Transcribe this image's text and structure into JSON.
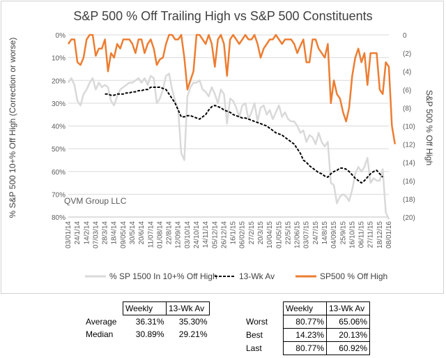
{
  "chart_data": {
    "type": "line",
    "title": "S&P 500 % Off Trailing High vs S&P 500 Constituents",
    "ylabel_left": "% S&P 500 10+% Off High (Correction or worse)",
    "ylabel_right": "S&P 500 % Off High",
    "watermark": "QVM Group LLC",
    "left_axis": {
      "min": 0,
      "max": 80,
      "ticks": [
        "0%",
        "10%",
        "20%",
        "30%",
        "40%",
        "50%",
        "60%",
        "70%",
        "80%"
      ],
      "tick_values": [
        0,
        10,
        20,
        30,
        40,
        50,
        60,
        70,
        80
      ]
    },
    "right_axis": {
      "min": 0,
      "max": 20,
      "ticks": [
        "0",
        "(2)",
        "(4)",
        "(6)",
        "(8)",
        "(10)",
        "(12)",
        "(14)",
        "(16)",
        "(18)",
        "(20)"
      ],
      "tick_values": [
        0,
        2,
        4,
        6,
        8,
        10,
        12,
        14,
        16,
        18,
        20
      ]
    },
    "x_ticks": [
      "03/01/14",
      "24/1/14",
      "14/2/14",
      "07/03/14",
      "28/3/14",
      "18/4/14",
      "09/05/14",
      "30/5/14",
      "20/6/14",
      "11/07/14",
      "01/08/14",
      "22/8/14",
      "12/09/14",
      "03/10/14",
      "24/10/14",
      "14/11/14",
      "05/12/14",
      "26/12/14",
      "16/1/15",
      "06/02/15",
      "27/2/15",
      "20/3/15",
      "10/04/15",
      "01/05/15",
      "22/5/15",
      "12/06/15",
      "03/07/15",
      "24/7/15",
      "14/8/15",
      "04/09/15",
      "25/9/15",
      "16/10/15",
      "06/11/15",
      "27/11/15",
      "18/12/15",
      "08/01/16"
    ],
    "n_points": 106,
    "legend_position": "bottom",
    "grid": true,
    "series": [
      {
        "name": "% SP 1500 In 10+% Off High",
        "axis": "left",
        "color": "#d9d9d9",
        "values": [
          21,
          19,
          22,
          29,
          31,
          26,
          24,
          21,
          19,
          24,
          21,
          23,
          22,
          23,
          29,
          31,
          27,
          24,
          23,
          22,
          21,
          21,
          20,
          19,
          21,
          19,
          22,
          18,
          19,
          30,
          28,
          24,
          18,
          17,
          24,
          29,
          33,
          52,
          55,
          27,
          23,
          21,
          21,
          20,
          24,
          25,
          27,
          23,
          26,
          30,
          24,
          26,
          39,
          28,
          29,
          32,
          36,
          31,
          30,
          37,
          34,
          30,
          38,
          32,
          31,
          35,
          33,
          37,
          34,
          31,
          36,
          34,
          37,
          38,
          38,
          40,
          43,
          42,
          47,
          44,
          45,
          48,
          43,
          47,
          49,
          47,
          65,
          66,
          74,
          71,
          70,
          71,
          73,
          68,
          61,
          58,
          60,
          58,
          54,
          65,
          63,
          64,
          64,
          59,
          78,
          81
        ]
      },
      {
        "name": "13-Wk Av",
        "axis": "left",
        "color": "#000000",
        "dashed": true,
        "start_index": 12,
        "values": [
          26,
          26,
          26.5,
          26.5,
          26,
          26,
          26,
          25.5,
          25.5,
          25,
          25,
          24.5,
          24.5,
          24,
          24,
          23,
          23,
          23,
          23,
          23.5,
          24,
          26,
          28,
          30,
          33,
          36,
          36,
          35.5,
          35.5,
          36,
          36.5,
          37,
          36,
          35,
          33,
          31.5,
          31,
          31.5,
          32,
          33,
          33.5,
          34,
          35,
          35.5,
          36,
          36.5,
          36.5,
          37,
          37.5,
          38,
          38.5,
          39,
          39.5,
          40,
          41,
          42,
          43,
          43.5,
          44,
          45,
          46,
          47,
          48,
          50,
          52,
          55,
          56,
          57.5,
          58.5,
          59.5,
          60.5,
          61,
          62,
          62.5,
          61,
          60,
          59.5,
          58.5,
          58.5,
          59,
          60,
          61.5,
          63,
          64,
          65,
          64,
          62.5,
          61,
          60,
          59.5,
          61,
          62.5
        ]
      },
      {
        "name": "SP500 % Off High",
        "axis": "right",
        "color": "#ed7d31",
        "values": [
          1,
          0.5,
          0.5,
          3,
          3.3,
          2.5,
          0.5,
          0,
          0,
          2.3,
          1.5,
          1.5,
          0.5,
          4,
          2,
          2.5,
          1,
          1.5,
          0.5,
          0.5,
          0.5,
          1,
          2,
          0.5,
          0.5,
          2,
          1,
          0.5,
          1.5,
          3.3,
          2.7,
          2.5,
          1,
          0,
          0,
          0.5,
          0.5,
          0,
          2.5,
          6,
          5,
          4,
          0,
          0,
          0.5,
          1,
          0,
          1,
          3.5,
          0.5,
          0,
          1,
          4.5,
          0.5,
          0,
          0.5,
          1,
          0.5,
          0,
          0.5,
          0.5,
          0,
          1,
          2.5,
          1.5,
          1,
          0.5,
          0.5,
          0,
          0.5,
          1,
          0.5,
          0.5,
          0.5,
          1,
          2,
          1.2,
          0.5,
          3,
          3,
          0.5,
          0.5,
          1.5,
          2,
          2.5,
          1,
          7.5,
          5,
          6.5,
          7,
          8.5,
          9.5,
          8,
          4.5,
          2.5,
          1.5,
          3,
          2,
          5.5,
          2,
          2,
          2,
          6,
          6.5,
          3,
          3.5,
          10,
          12
        ]
      }
    ]
  },
  "legend": {
    "items": [
      {
        "label": "% SP 1500 In 10+% Off High",
        "color": "#d9d9d9"
      },
      {
        "label": "13-Wk Av",
        "color": "#000000"
      },
      {
        "label": "SP500 % Off High",
        "color": "#ed7d31"
      }
    ]
  },
  "stats_left": {
    "headers": [
      "Weekly",
      "13-Wk Av"
    ],
    "rows": [
      {
        "label": "Average",
        "weekly": "36.31%",
        "avg": "35.30%"
      },
      {
        "label": "Median",
        "weekly": "30.89%",
        "avg": "29.21%"
      }
    ]
  },
  "stats_right": {
    "headers": [
      "Weekly",
      "13-Wk Av"
    ],
    "rows": [
      {
        "label": "Worst",
        "weekly": "80.77%",
        "avg": "65.06%"
      },
      {
        "label": "Best",
        "weekly": "14.23%",
        "avg": "20.13%"
      },
      {
        "label": "Last",
        "weekly": "80.77%",
        "avg": "60.92%"
      }
    ]
  }
}
